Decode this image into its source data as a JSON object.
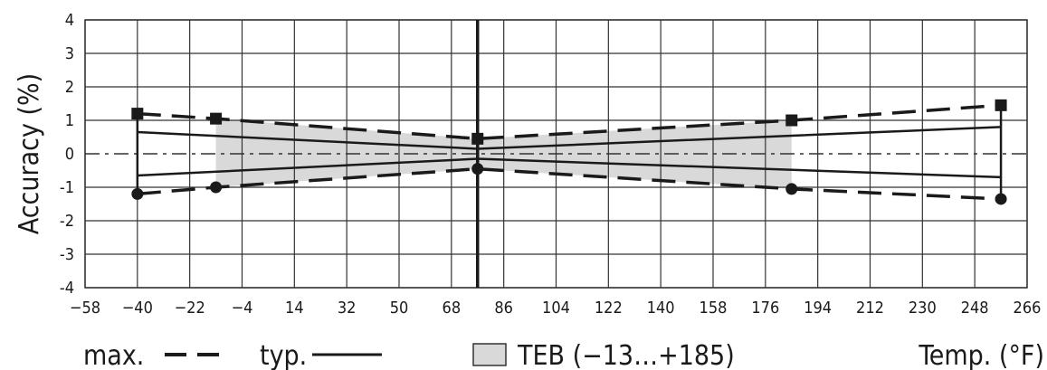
{
  "chart_data": {
    "type": "line",
    "ylabel": "Accuracy (%)",
    "xlabel": "Temp. (°F)",
    "xlim": [
      -58,
      266
    ],
    "ylim": [
      -4,
      4
    ],
    "x_ticks": [
      "-58",
      "-40",
      "-22",
      "-4",
      "14",
      "32",
      "50",
      "68",
      "86",
      "104",
      "122",
      "140",
      "158",
      "176",
      "194",
      "212",
      "230",
      "248",
      "266"
    ],
    "y_ticks": [
      "4",
      "3",
      "2",
      "1",
      "0",
      "-1",
      "-2",
      "-3",
      "-4"
    ],
    "grid": true,
    "reference_line_x": 77,
    "series": [
      {
        "name": "max.",
        "style": "dashed",
        "marker": "square",
        "x": [
          -40,
          -13,
          77,
          185,
          257
        ],
        "y": [
          1.2,
          1.05,
          0.45,
          1.0,
          1.45
        ]
      },
      {
        "name": "max.",
        "style": "dashed",
        "marker": "circle",
        "x": [
          -40,
          -13,
          77,
          185,
          257
        ],
        "y": [
          -1.2,
          -1.0,
          -0.45,
          -1.05,
          -1.35
        ]
      },
      {
        "name": "typ.",
        "style": "solid",
        "x": [
          -40,
          77,
          257
        ],
        "y": [
          0.65,
          0.15,
          0.8
        ]
      },
      {
        "name": "typ.",
        "style": "solid",
        "x": [
          -40,
          77,
          257
        ],
        "y": [
          -0.65,
          -0.15,
          -0.7
        ]
      }
    ],
    "teb_band": {
      "x_range": [
        -13,
        185
      ]
    },
    "legend": {
      "max_label": "max.",
      "typ_label": "typ.",
      "teb_label": "TEB (−13…+185)"
    },
    "colors": {
      "band": "#d9d9d9",
      "line": "#1a1a1a",
      "grid": "#333333"
    }
  }
}
